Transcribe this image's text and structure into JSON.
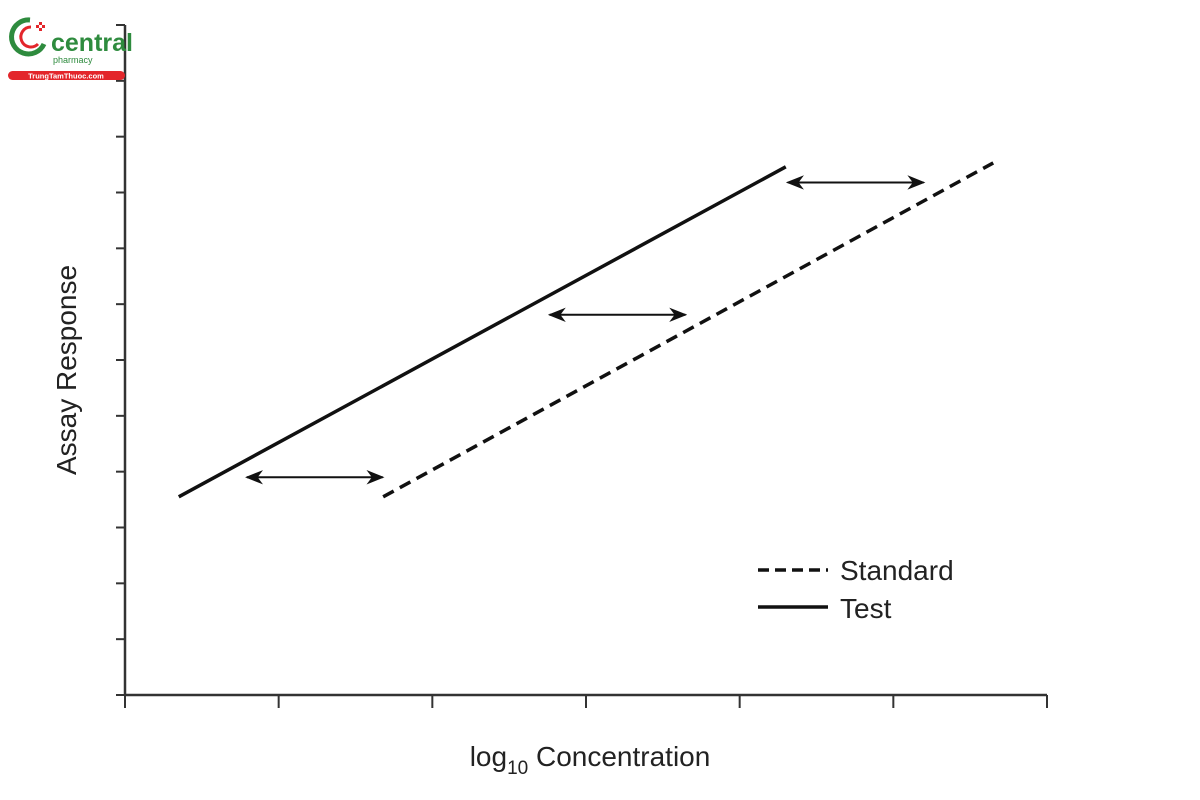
{
  "logo": {
    "brand": "central",
    "sub": "pharmacy",
    "site": "TrungTamThuoc.com",
    "colors": {
      "green": "#2e8b3e",
      "red": "#e3262b"
    }
  },
  "chart_data": {
    "type": "line",
    "title": "",
    "xlabel_main": "log",
    "xlabel_sub": "10",
    "xlabel_rest": " Concentration",
    "ylabel": "Assay Response",
    "xlim": [
      0,
      6
    ],
    "ylim": [
      0,
      12
    ],
    "x_ticks": [
      0,
      1,
      2,
      3,
      4,
      5,
      6
    ],
    "y_ticks": [
      0,
      1,
      2,
      3,
      4,
      5,
      6,
      7,
      8,
      9,
      10,
      11,
      12
    ],
    "tick_labels_shown": false,
    "grid": false,
    "legend_position": "bottom-right",
    "series": [
      {
        "name": "Standard",
        "style": "dashed",
        "x": [
          1.68,
          5.65
        ],
        "y": [
          3.55,
          9.53
        ]
      },
      {
        "name": "Test",
        "style": "solid",
        "x": [
          0.35,
          4.3
        ],
        "y": [
          3.55,
          9.46
        ]
      }
    ],
    "annotations": [
      {
        "type": "double-arrow",
        "x": [
          0.78,
          1.69
        ],
        "y": 3.9
      },
      {
        "type": "double-arrow",
        "x": [
          2.75,
          3.66
        ],
        "y": 6.81
      },
      {
        "type": "double-arrow",
        "x": [
          4.3,
          5.21
        ],
        "y": 9.18
      }
    ],
    "colors": {
      "line": "#111111",
      "axis": "#333333"
    }
  }
}
